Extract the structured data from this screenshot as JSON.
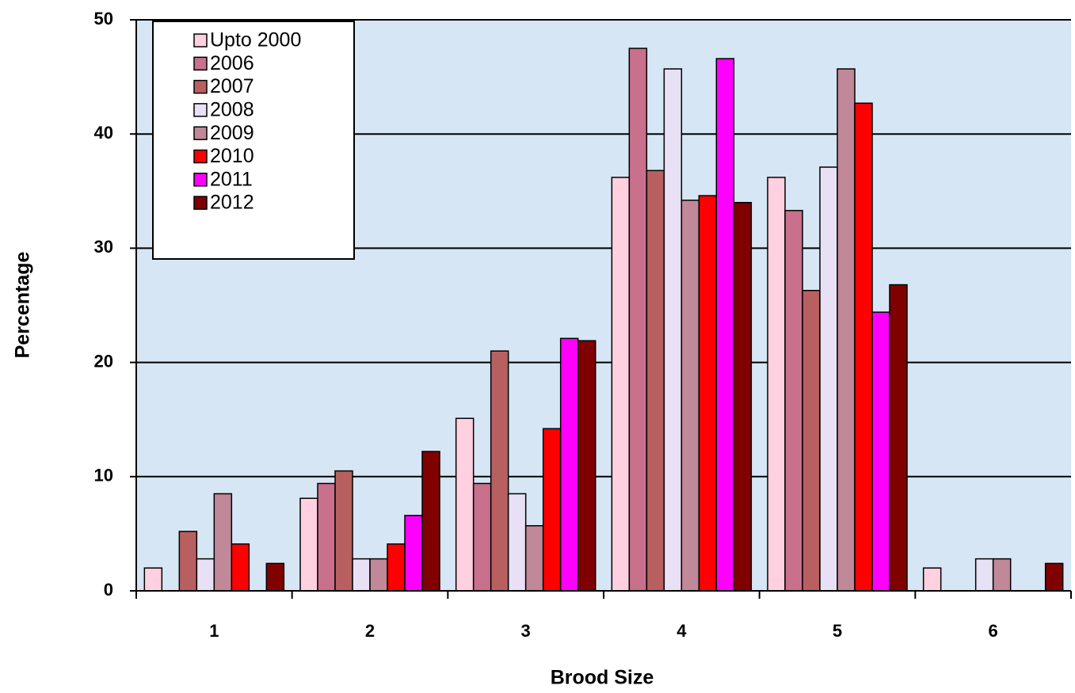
{
  "chart_data": {
    "type": "bar",
    "x_label": "Brood Size",
    "y_label": "Percentage",
    "categories": [
      "1",
      "2",
      "3",
      "4",
      "5",
      "6"
    ],
    "series": [
      {
        "name": "Upto 2000",
        "color": "#ffd0e0",
        "values": [
          2.0,
          8.1,
          15.1,
          36.2,
          36.2,
          2.0
        ]
      },
      {
        "name": "2006",
        "color": "#c8708c",
        "values": [
          0,
          9.4,
          9.4,
          47.5,
          33.3,
          0
        ]
      },
      {
        "name": "2007",
        "color": "#b86060",
        "values": [
          5.2,
          10.5,
          21.0,
          36.8,
          26.3,
          0
        ]
      },
      {
        "name": "2008",
        "color": "#e8e0f4",
        "values": [
          2.8,
          2.8,
          8.5,
          45.7,
          37.1,
          2.8
        ]
      },
      {
        "name": "2009",
        "color": "#c08898",
        "values": [
          8.5,
          2.8,
          5.7,
          34.2,
          45.7,
          2.8
        ]
      },
      {
        "name": "2010",
        "color": "#ff0000",
        "values": [
          4.1,
          4.1,
          14.2,
          34.6,
          42.7,
          0
        ]
      },
      {
        "name": "2011",
        "color": "#ff00ff",
        "values": [
          0,
          6.6,
          22.1,
          46.6,
          24.4,
          0
        ]
      },
      {
        "name": "2012",
        "color": "#800000",
        "values": [
          2.4,
          12.2,
          21.9,
          34.0,
          26.8,
          2.4
        ]
      }
    ],
    "ylim": [
      0,
      50
    ],
    "yticks": [
      0,
      10,
      20,
      30,
      40,
      50
    ],
    "grid": true,
    "legend": "upper left"
  }
}
